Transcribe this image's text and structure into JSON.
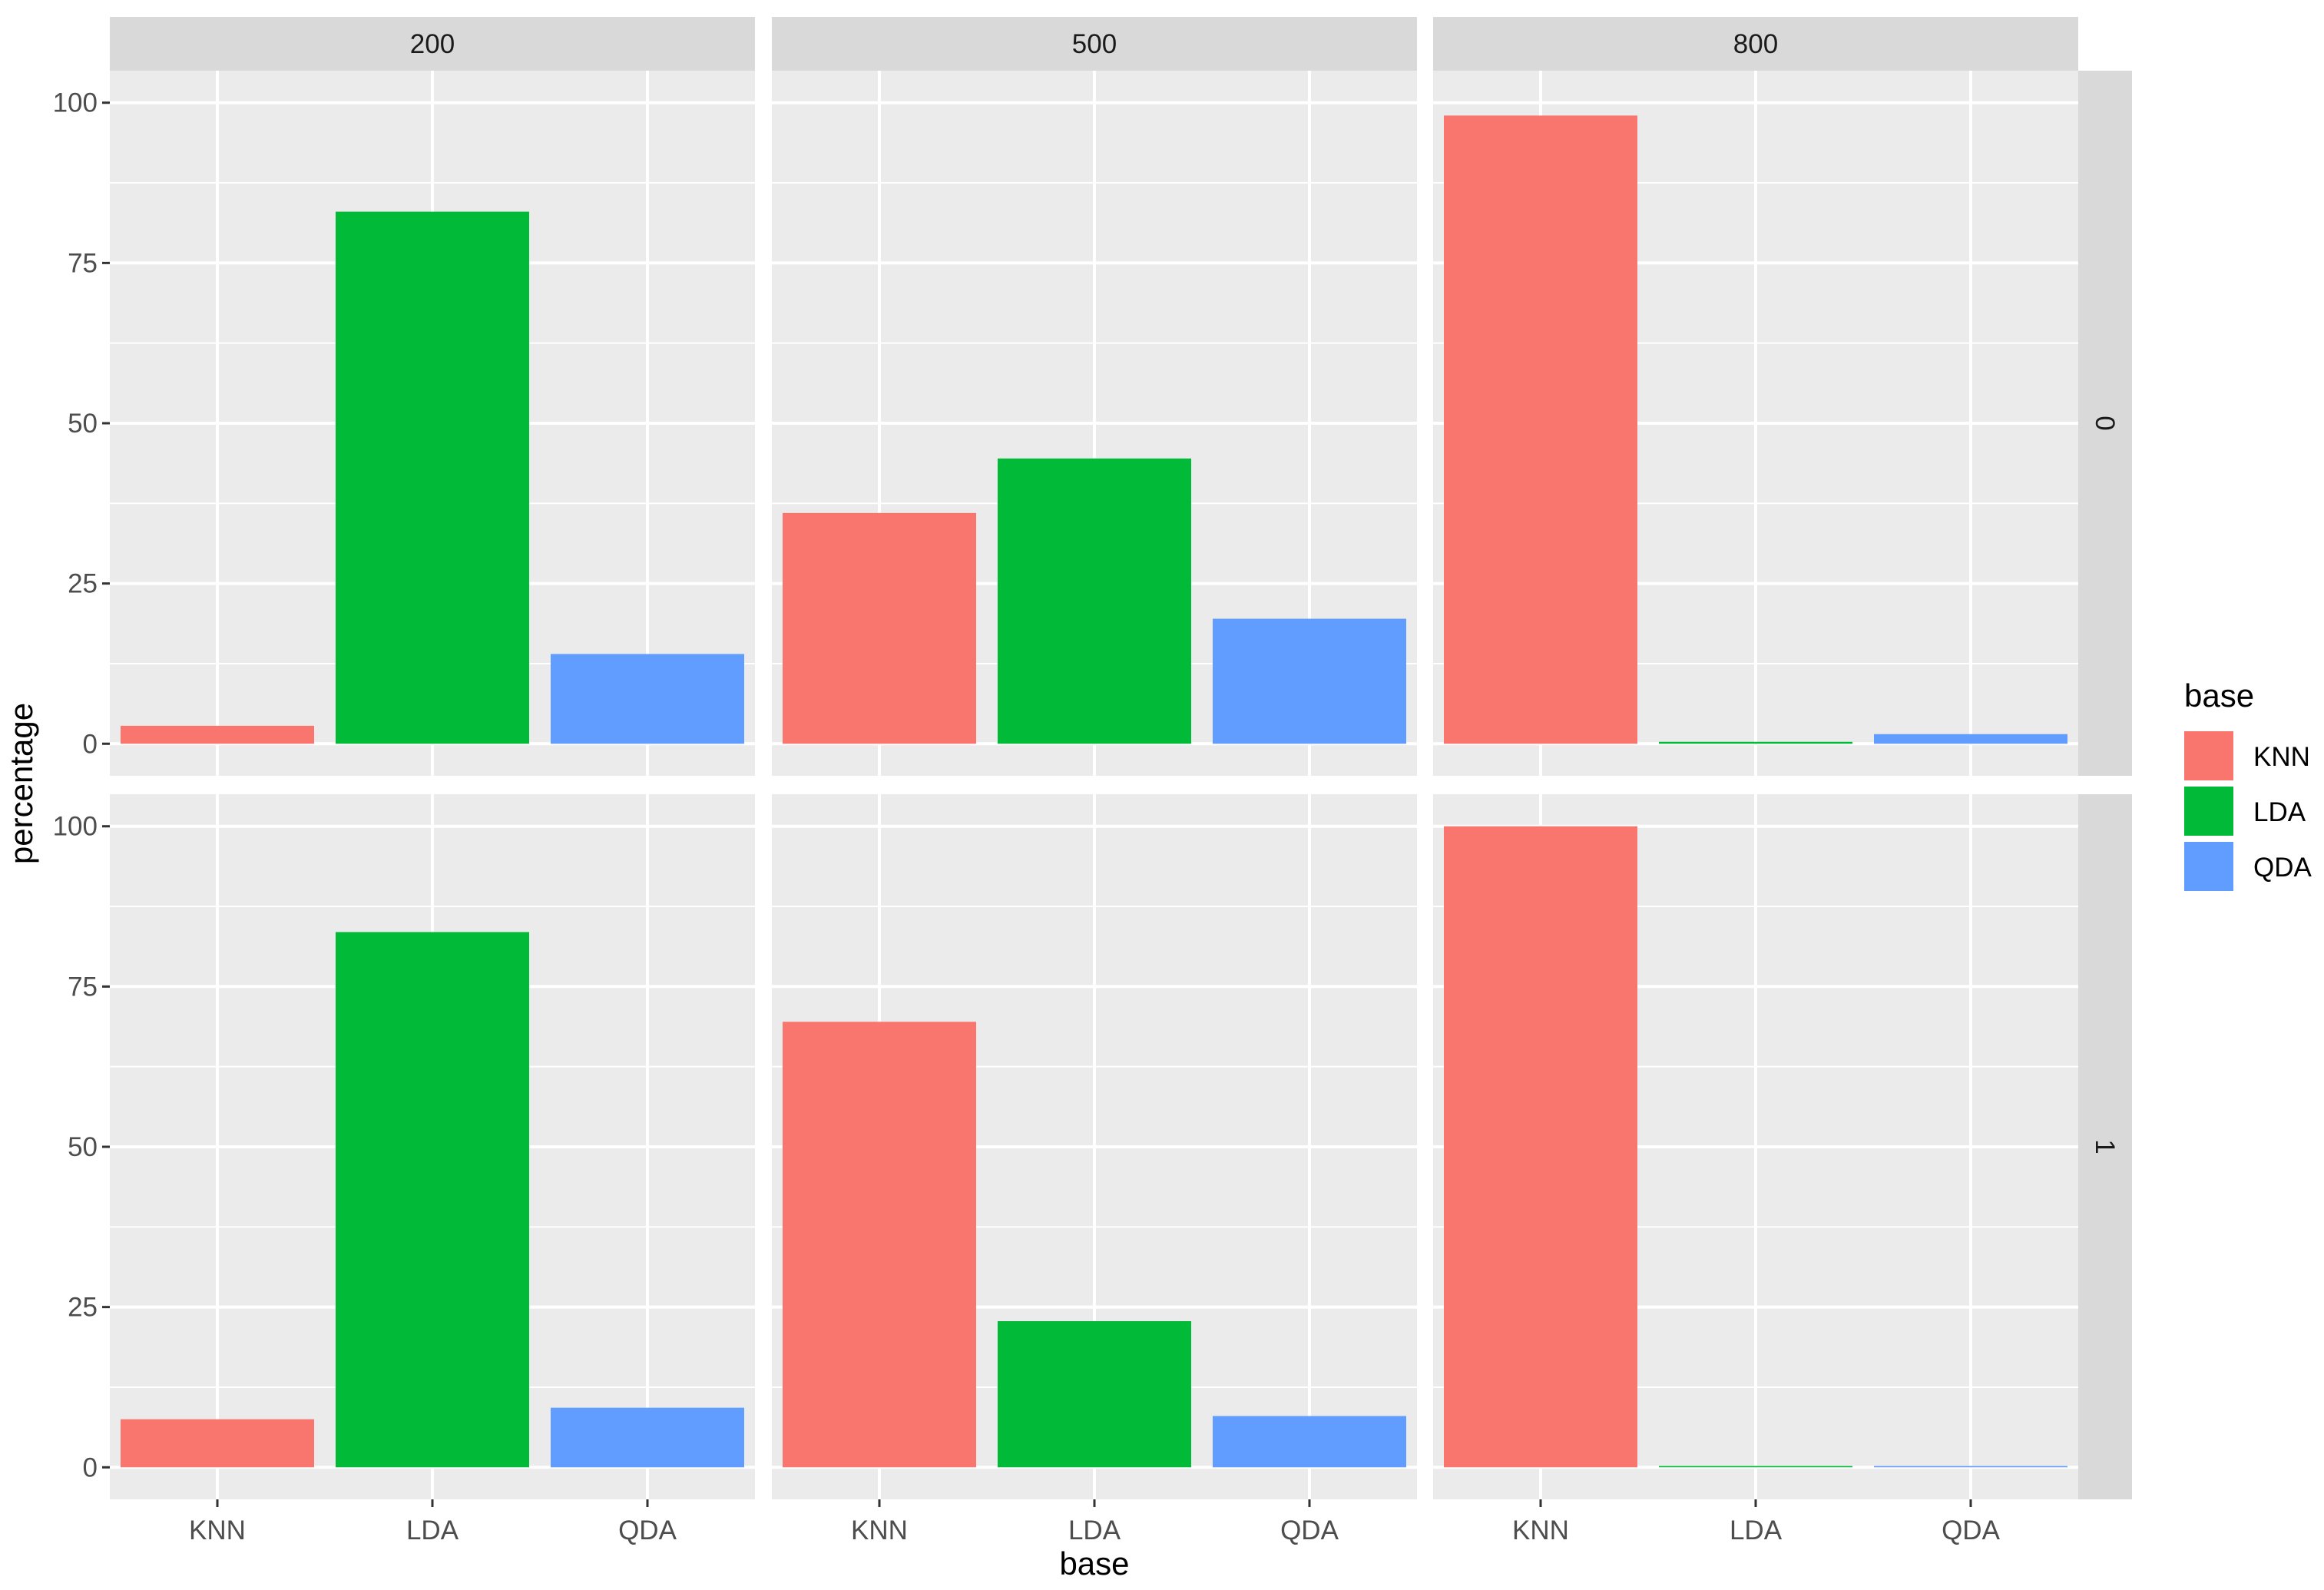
{
  "chart_data": {
    "type": "bar",
    "facet_columns": [
      "200",
      "500",
      "800"
    ],
    "facet_rows": [
      "0",
      "1"
    ],
    "categories": [
      "KNN",
      "LDA",
      "QDA"
    ],
    "colors": {
      "KNN": "#F8766D",
      "LDA": "#00BA38",
      "QDA": "#619CFF"
    },
    "panels": [
      {
        "col": "200",
        "row": "0",
        "values": [
          2.8,
          83,
          14
        ]
      },
      {
        "col": "500",
        "row": "0",
        "values": [
          36,
          44.5,
          19.5
        ]
      },
      {
        "col": "800",
        "row": "0",
        "values": [
          98,
          0.3,
          1.5
        ]
      },
      {
        "col": "200",
        "row": "1",
        "values": [
          7.5,
          83.5,
          9.3
        ]
      },
      {
        "col": "500",
        "row": "1",
        "values": [
          69.5,
          22.8,
          8
        ]
      },
      {
        "col": "800",
        "row": "1",
        "values": [
          100,
          0.2,
          0.2
        ]
      }
    ],
    "y_ticks": [
      0,
      25,
      50,
      75,
      100
    ],
    "ylim": [
      -5,
      105
    ],
    "xlabel": "base",
    "ylabel": "percentage",
    "legend": {
      "title": "base",
      "entries": [
        "KNN",
        "LDA",
        "QDA"
      ],
      "position": "right"
    },
    "background": "#EBEBEB",
    "strip_background": "#D9D9D9",
    "grid": true
  }
}
